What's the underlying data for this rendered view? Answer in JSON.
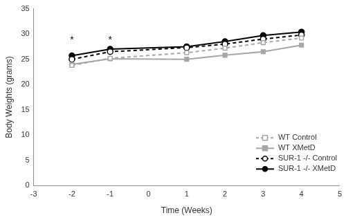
{
  "chart_data": {
    "type": "line",
    "x_label": "Time (Weeks)",
    "y_label": "Body Weights (grams)",
    "x": [
      -2,
      -1,
      1,
      2,
      3,
      4
    ],
    "series": [
      {
        "name": "WT Control",
        "color": "#a6a6a6",
        "marker": "square-open",
        "line_style": "dashed",
        "values": [
          23.8,
          25.2,
          26.3,
          27.2,
          28.3,
          29.2
        ]
      },
      {
        "name": "WT XMetD",
        "color": "#a6a6a6",
        "marker": "square",
        "line_style": "solid",
        "values": [
          24.0,
          25.1,
          25.0,
          25.8,
          26.5,
          27.8
        ]
      },
      {
        "name": "SUR-1 -/- Control",
        "color": "#000000",
        "marker": "circle-open",
        "line_style": "dashed",
        "values": [
          25.0,
          26.5,
          27.3,
          28.0,
          29.0,
          29.8
        ]
      },
      {
        "name": "SUR-1 -/- XMetD",
        "color": "#000000",
        "marker": "circle",
        "line_style": "solid",
        "values": [
          25.7,
          27.0,
          27.5,
          28.5,
          29.7,
          30.4
        ]
      }
    ],
    "xlim": [
      -3,
      5
    ],
    "xticks": [
      -3,
      -2,
      -1,
      0,
      1,
      2,
      3,
      4,
      5
    ],
    "ylim": [
      0,
      35
    ],
    "yticks": [
      0,
      5,
      10,
      15,
      20,
      25,
      30,
      35
    ],
    "annotations": [
      {
        "text": "*",
        "x": -2,
        "y": 28.8
      },
      {
        "text": "*",
        "x": -1,
        "y": 28.8
      }
    ],
    "grid": false,
    "legend": "right"
  }
}
